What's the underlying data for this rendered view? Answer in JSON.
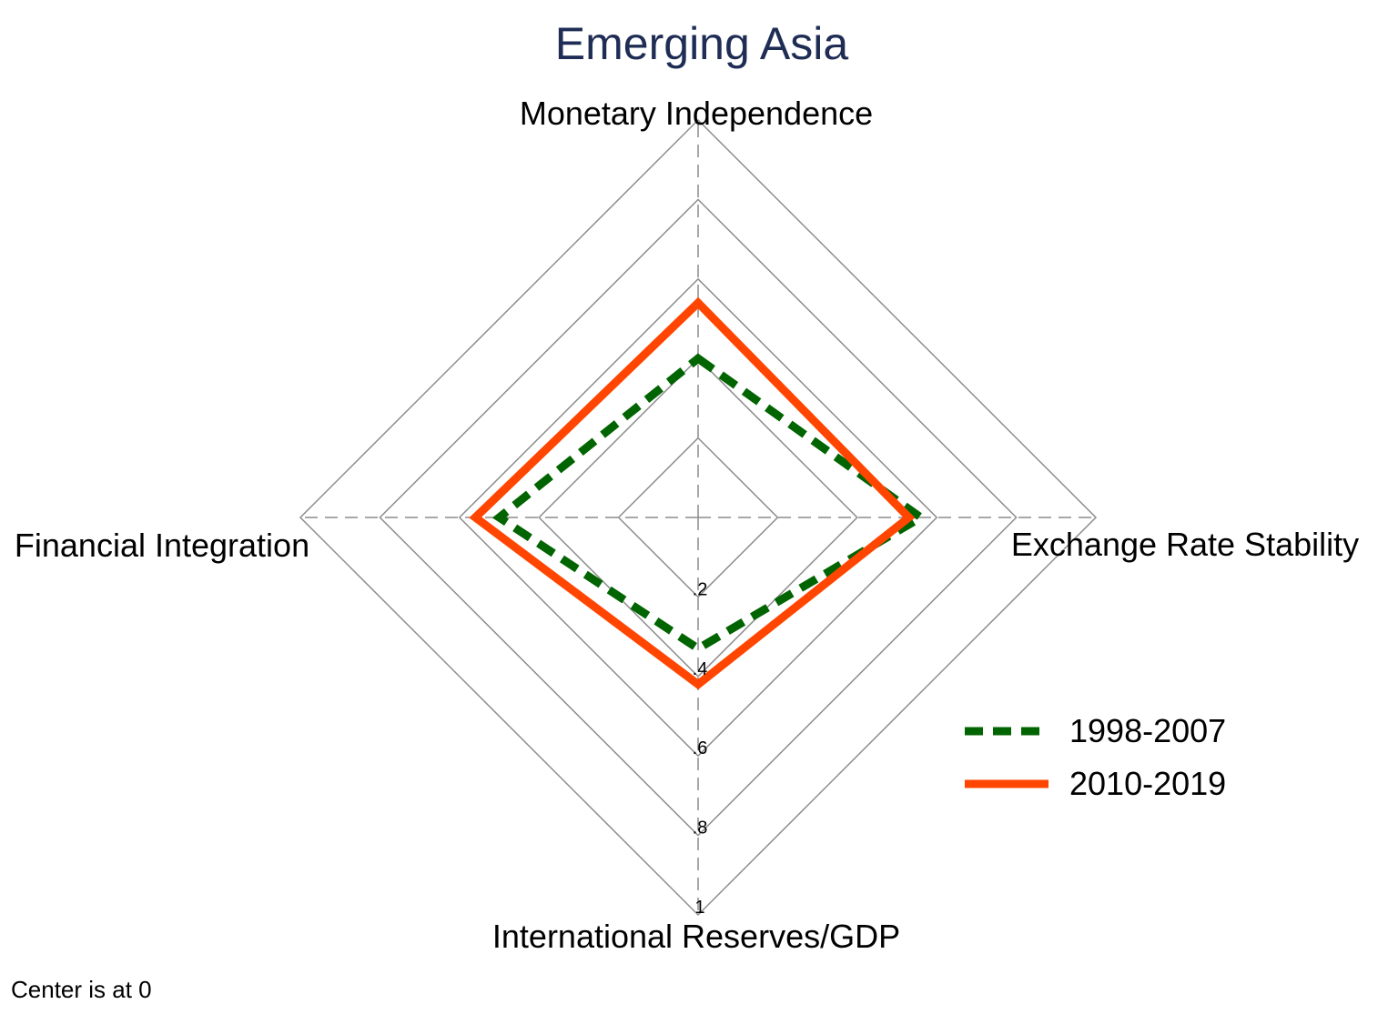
{
  "chart_data": {
    "type": "radar",
    "title": "Emerging Asia",
    "axes": [
      "Monetary Independence",
      "Exchange Rate Stability",
      "International Reserves/GDP",
      "Financial Integration"
    ],
    "rlim": [
      0,
      1
    ],
    "ticks": [
      0.2,
      0.4,
      0.6,
      0.8,
      1
    ],
    "tick_labels": [
      ".2",
      ".4",
      ".6",
      ".8",
      "1"
    ],
    "grid": true,
    "legend_position": "right",
    "note": "Center is at 0",
    "series": [
      {
        "name": "1998-2007",
        "color": "#006400",
        "style": "dashed",
        "values": [
          0.4,
          0.56,
          0.33,
          0.5
        ]
      },
      {
        "name": "2010-2019",
        "color": "#ff4500",
        "style": "solid",
        "values": [
          0.54,
          0.53,
          0.42,
          0.56
        ]
      }
    ]
  }
}
